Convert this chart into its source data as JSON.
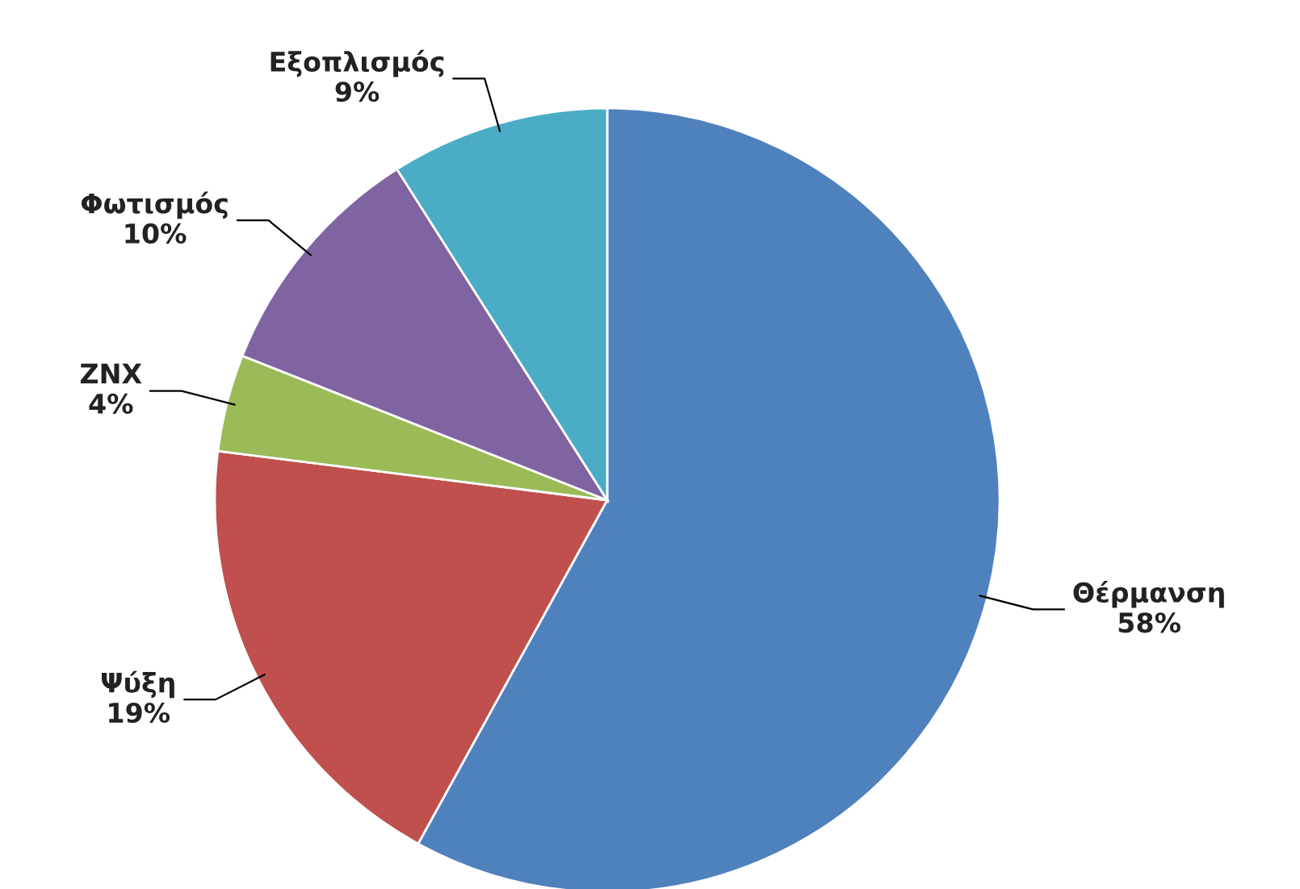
{
  "chart_data": {
    "type": "pie",
    "categories": [
      "Θέρμανση",
      "Ψύξη",
      "ZNX",
      "Φωτισμός",
      "Εξοπλισμός"
    ],
    "values": [
      58,
      19,
      4,
      10,
      9
    ],
    "value_labels": [
      "58%",
      "19%",
      "4%",
      "10%",
      "9%"
    ],
    "colors": [
      "#4f81bd",
      "#c0504d",
      "#9bbb59",
      "#8064a2",
      "#4bacc6"
    ]
  }
}
